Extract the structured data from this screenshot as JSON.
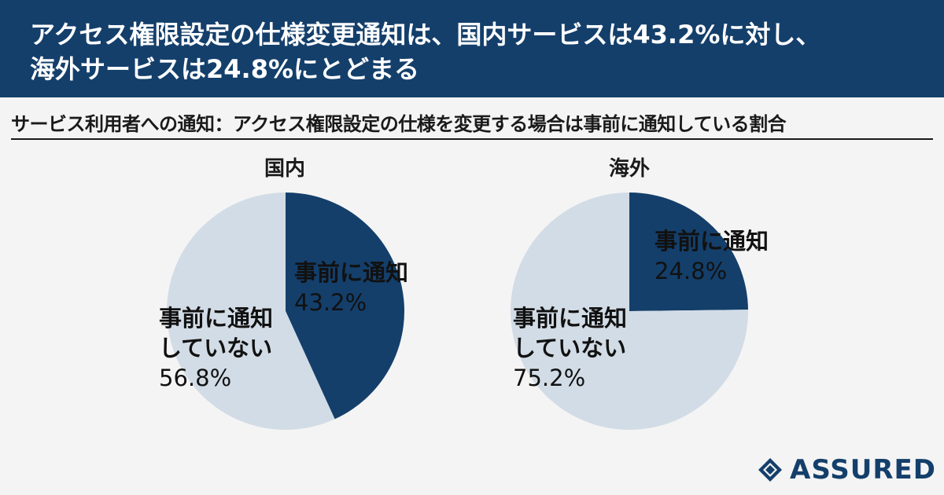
{
  "header": {
    "line1": "アクセス権限設定の仕様変更通知は、国内サービスは43.2%に対し、",
    "line2": "海外サービスは24.8%にとどまる"
  },
  "subtitle": "サービス利用者への通知：アクセス権限設定の仕様を変更する場合は事前に通知している割合",
  "colors": {
    "header_bg": "#143f6b",
    "notified": "#143f6b",
    "not_notified": "#d2dce6",
    "logo": "#143f6b"
  },
  "logo": {
    "text": "ASSURED"
  },
  "chart_data": [
    {
      "type": "pie",
      "title": "国内",
      "slices": [
        {
          "label": "事前に通知",
          "value": 43.2,
          "value_label": "43.2%",
          "color": "#143f6b"
        },
        {
          "label": "事前に通知していない",
          "value": 56.8,
          "value_label": "56.8%",
          "color": "#d2dce6"
        }
      ]
    },
    {
      "type": "pie",
      "title": "海外",
      "slices": [
        {
          "label": "事前に通知",
          "value": 24.8,
          "value_label": "24.8%",
          "color": "#143f6b"
        },
        {
          "label": "事前に通知していない",
          "value": 75.2,
          "value_label": "75.2%",
          "color": "#d2dce6"
        }
      ]
    }
  ]
}
